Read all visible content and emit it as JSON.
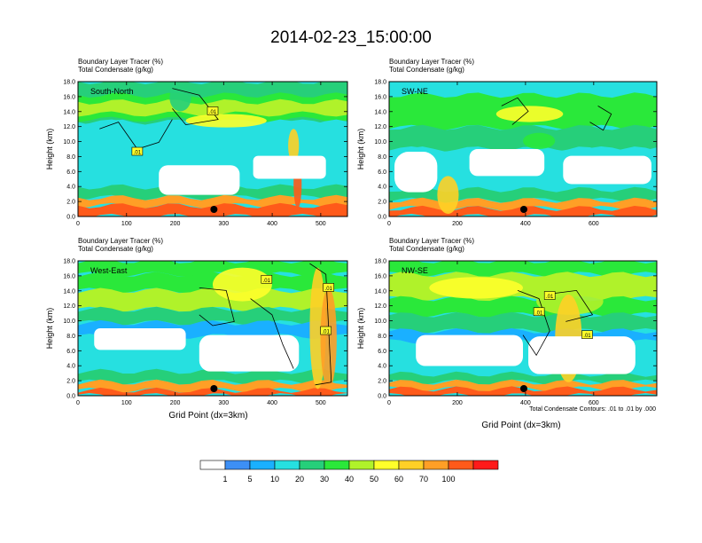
{
  "title": "2014-02-23_15:00:00",
  "colors": {
    "levels": [
      "#ffffff",
      "#3d8ff5",
      "#1ab0ff",
      "#26e0e0",
      "#26cf7a",
      "#2ae83a",
      "#b0f22a",
      "#ffff2a",
      "#ffd026",
      "#ff9f26",
      "#ff5a1a",
      "#ff1a1a"
    ]
  },
  "colorbar": {
    "labels": [
      "1",
      "5",
      "10",
      "20",
      "30",
      "40",
      "50",
      "60",
      "70",
      "100"
    ]
  },
  "contour_note": "Total Condensate Contours: .01 to .01 by .000",
  "xlabel": "Grid Point (dx=3km)",
  "chart_data": [
    {
      "type": "heatmap",
      "id": "south-north",
      "label": "South-North",
      "subtitle1": "Boundary Layer Tracer    (%)",
      "subtitle2": "Total Condensate    (g/kg)",
      "ylabel": "Height (km)",
      "xlabel": "",
      "xlim": [
        0,
        555
      ],
      "ylim": [
        0,
        18
      ],
      "xticks": [
        0,
        100,
        200,
        300,
        400,
        500
      ],
      "yticks": [
        "0.0",
        "2.0",
        "4.0",
        "6.0",
        "8.0",
        "10.0",
        "12.0",
        "14.0",
        "16.0",
        "18.0"
      ],
      "contour_labels": [
        ".01",
        ".01"
      ],
      "ground_marker_x": 280
    },
    {
      "type": "heatmap",
      "id": "sw-ne",
      "label": "SW-NE",
      "subtitle1": "Boundary Layer Tracer    (%)",
      "subtitle2": "Total Condensate    (g/kg)",
      "ylabel": "Height (km)",
      "xlabel": "",
      "xlim": [
        0,
        785
      ],
      "ylim": [
        0,
        18
      ],
      "xticks": [
        0,
        200,
        400,
        600
      ],
      "yticks": [
        "0.0",
        "2.0",
        "4.0",
        "6.0",
        "8.0",
        "10.0",
        "12.0",
        "14.0",
        "16.0",
        "18.0"
      ],
      "contour_labels": [],
      "ground_marker_x": 395
    },
    {
      "type": "heatmap",
      "id": "west-east",
      "label": "West-East",
      "subtitle1": "Boundary Layer Tracer    (%)",
      "subtitle2": "Total Condensate    (g/kg)",
      "ylabel": "Height (km)",
      "xlabel": "Grid Point (dx=3km)",
      "xlim": [
        0,
        555
      ],
      "ylim": [
        0,
        18
      ],
      "xticks": [
        0,
        100,
        200,
        300,
        400,
        500
      ],
      "yticks": [
        "0.0",
        "2.0",
        "4.0",
        "6.0",
        "8.0",
        "10.0",
        "12.0",
        "14.0",
        "16.0",
        "18.0"
      ],
      "contour_labels": [
        ".01",
        ".01",
        ".01"
      ],
      "ground_marker_x": 280
    },
    {
      "type": "heatmap",
      "id": "nw-se",
      "label": "NW-SE",
      "subtitle1": "Boundary Layer Tracer    (%)",
      "subtitle2": "Total Condensate    (g/kg)",
      "ylabel": "Height (km)",
      "xlabel": "Grid Point (dx=3km)",
      "xlim": [
        0,
        785
      ],
      "ylim": [
        0,
        18
      ],
      "xticks": [
        0,
        200,
        400,
        600
      ],
      "yticks": [
        "0.0",
        "2.0",
        "4.0",
        "6.0",
        "8.0",
        "10.0",
        "12.0",
        "14.0",
        "16.0",
        "18.0"
      ],
      "contour_labels": [
        ".01",
        ".01",
        ".01"
      ],
      "ground_marker_x": 395
    }
  ]
}
